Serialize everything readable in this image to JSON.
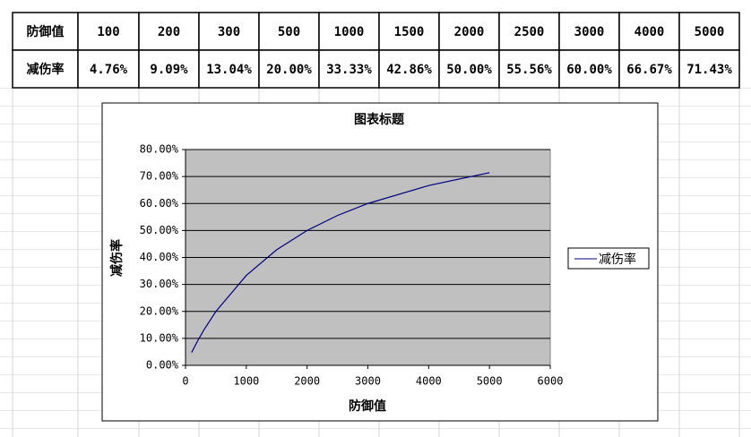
{
  "table": {
    "rows": [
      [
        "防御值",
        "100",
        "200",
        "300",
        "500",
        "1000",
        "1500",
        "2000",
        "2500",
        "3000",
        "4000",
        "5000"
      ],
      [
        "减伤率",
        "4.76%",
        "9.09%",
        "13.04%",
        "20.00%",
        "33.33%",
        "42.86%",
        "50.00%",
        "55.56%",
        "60.00%",
        "66.67%",
        "71.43%"
      ]
    ]
  },
  "chart_data": {
    "type": "line",
    "title": "图表标题",
    "x_label": "防御值",
    "y_label": "减伤率",
    "x": [
      100,
      200,
      300,
      500,
      1000,
      1500,
      2000,
      2500,
      3000,
      4000,
      5000
    ],
    "series": [
      {
        "name": "减伤率",
        "color": "#000080",
        "values": [
          4.76,
          9.09,
          13.04,
          20.0,
          33.33,
          42.86,
          50.0,
          55.56,
          60.0,
          66.67,
          71.43
        ]
      }
    ],
    "xlim": [
      0,
      6000
    ],
    "xticks": [
      0,
      1000,
      2000,
      3000,
      4000,
      5000,
      6000
    ],
    "ylim": [
      0,
      80
    ],
    "yticks": [
      {
        "value": 0,
        "label": "0.00%"
      },
      {
        "value": 10,
        "label": "10.00%"
      },
      {
        "value": 20,
        "label": "20.00%"
      },
      {
        "value": 30,
        "label": "30.00%"
      },
      {
        "value": 40,
        "label": "40.00%"
      },
      {
        "value": 50,
        "label": "50.00%"
      },
      {
        "value": 60,
        "label": "60.00%"
      },
      {
        "value": 70,
        "label": "70.00%"
      },
      {
        "value": 80,
        "label": "80.00%"
      }
    ],
    "grid": true,
    "plot_background": "#c0c0c0",
    "legend": "right"
  }
}
